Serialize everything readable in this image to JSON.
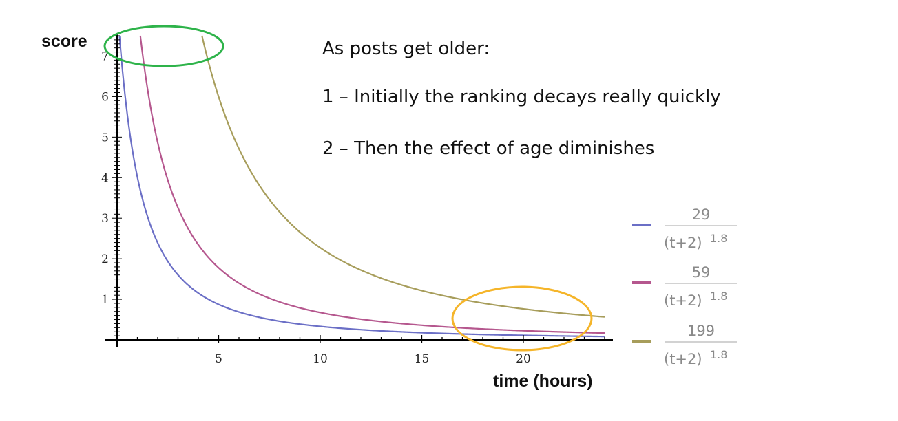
{
  "chart_data": {
    "type": "line",
    "xlabel": "time (hours)",
    "ylabel": "score",
    "xlim": [
      0,
      24
    ],
    "ylim": [
      0,
      7.5
    ],
    "xticks": [
      5,
      10,
      15,
      20
    ],
    "yticks": [
      1,
      2,
      3,
      4,
      5,
      6,
      7
    ],
    "grid": false,
    "legend_position": "right",
    "series": [
      {
        "name": "29/(t+2)^1.8",
        "numerator": 29,
        "exponent": 1.8,
        "color": "#6b6fc6",
        "legend": {
          "numerator": "29",
          "base": "(t+2)",
          "exponent": "1.8"
        }
      },
      {
        "name": "59/(t+2)^1.8",
        "numerator": 59,
        "exponent": 1.8,
        "color": "#b5578e",
        "legend": {
          "numerator": "59",
          "base": "(t+2)",
          "exponent": "1.8"
        }
      },
      {
        "name": "199/(t+2)^1.8",
        "numerator": 199,
        "exponent": 1.8,
        "color": "#a79d5b",
        "legend": {
          "numerator": "199",
          "base": "(t+2)",
          "exponent": "1.8"
        }
      }
    ],
    "annotations": {
      "heading": "As posts get older:",
      "point1": "1 – Initially the ranking decays really quickly",
      "point2": "2 – Then the effect of age diminishes",
      "highlights": [
        {
          "name": "early-decay",
          "color": "#2eb34a"
        },
        {
          "name": "late-flattening",
          "color": "#f5b52a"
        }
      ]
    }
  }
}
